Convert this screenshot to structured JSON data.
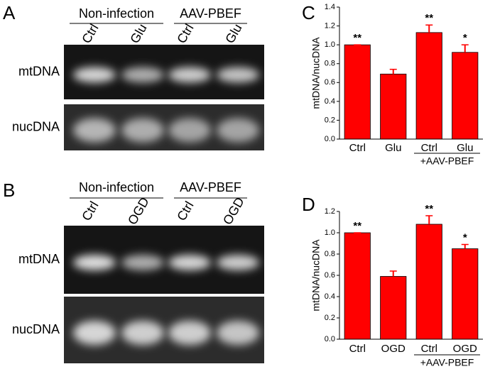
{
  "panel_labels": [
    "A",
    "B",
    "C",
    "D"
  ],
  "gels": [
    {
      "groups": [
        "Non-infection",
        "AAV-PBEF"
      ],
      "lanes": [
        "Ctrl",
        "Glu",
        "Ctrl",
        "Glu"
      ],
      "rows": [
        "mtDNA",
        "nucDNA"
      ]
    },
    {
      "groups": [
        "Non-infection",
        "AAV-PBEF"
      ],
      "lanes": [
        "Ctrl",
        "OGD",
        "Ctrl",
        "OGD"
      ],
      "rows": [
        "mtDNA",
        "nucDNA"
      ]
    }
  ],
  "chart_data": [
    {
      "type": "bar",
      "ylabel": "mtDNA/nucDNA",
      "categories": [
        "Ctrl",
        "Glu",
        "Ctrl",
        "Glu"
      ],
      "values": [
        1.0,
        0.69,
        1.13,
        0.92
      ],
      "errors": [
        0,
        0.05,
        0.08,
        0.08
      ],
      "significance": [
        "**",
        null,
        "**",
        "*"
      ],
      "group_label": "+AAV-PBEF",
      "color": "#ff0000",
      "ylim": [
        0,
        1.4
      ],
      "yticks": [
        {
          "value": 0,
          "label": "0.0"
        },
        {
          "value": 0.2,
          "label": "0.2"
        },
        {
          "value": 0.4,
          "label": "0.4"
        },
        {
          "value": 0.6,
          "label": "0.6"
        },
        {
          "value": 0.8,
          "label": "0.8"
        },
        {
          "value": 1.0,
          "label": "1.0"
        },
        {
          "value": 1.2,
          "label": "1.2"
        },
        {
          "value": 1.4,
          "label": "1.4"
        }
      ]
    },
    {
      "type": "bar",
      "ylabel": "mtDNA/nucDNA",
      "categories": [
        "Ctrl",
        "OGD",
        "Ctrl",
        "OGD"
      ],
      "values": [
        1.0,
        0.59,
        1.08,
        0.85
      ],
      "errors": [
        0,
        0.05,
        0.08,
        0.04
      ],
      "significance": [
        "**",
        null,
        "**",
        "*"
      ],
      "group_label": "+AAV-PBEF",
      "color": "#ff0000",
      "ylim": [
        0,
        1.2
      ],
      "yticks": [
        {
          "value": 0,
          "label": "0.0"
        },
        {
          "value": 0.2,
          "label": "0.2"
        },
        {
          "value": 0.4,
          "label": "0.4"
        },
        {
          "value": 0.6,
          "label": "0.6"
        },
        {
          "value": 0.8,
          "label": "0.8"
        },
        {
          "value": 1.0,
          "label": "1.0"
        },
        {
          "value": 1.2,
          "label": "1.2"
        }
      ]
    }
  ]
}
